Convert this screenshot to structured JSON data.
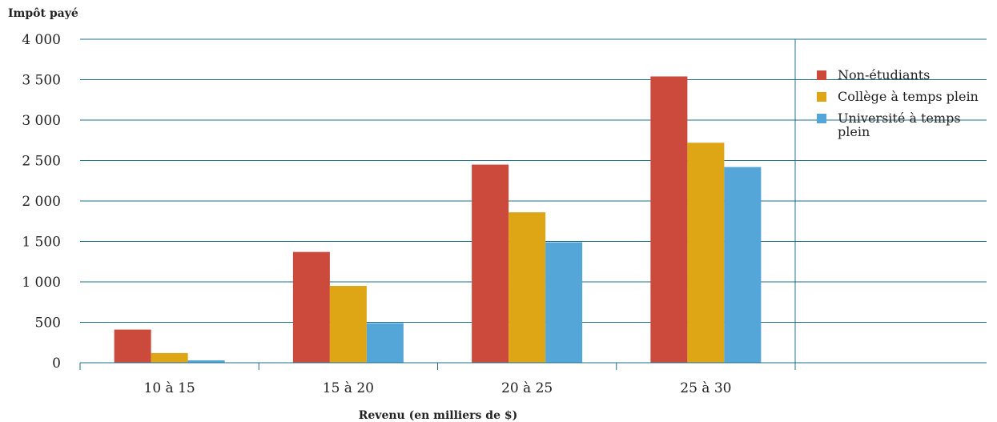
{
  "chart_data": {
    "type": "bar",
    "ylabel": "Impôt payé",
    "xlabel": "Revenu (en milliers de $)",
    "categories": [
      "10 à 15",
      "15 à 20",
      "20 à 25",
      "25 à 30"
    ],
    "series": [
      {
        "name": "Non-étudiants",
        "name_lines": [
          "Non-étudiants"
        ],
        "color": "#cc4a3c",
        "values": [
          410,
          1370,
          2450,
          3540
        ]
      },
      {
        "name": "Collège à temps plein",
        "name_lines": [
          "Collège à temps plein"
        ],
        "color": "#dea515",
        "values": [
          120,
          950,
          1860,
          2720
        ]
      },
      {
        "name": "Université à temps plein",
        "name_lines": [
          "Université à temps",
          "plein"
        ],
        "color": "#55a6d8",
        "values": [
          30,
          490,
          1490,
          2420
        ]
      }
    ],
    "ylim": [
      0,
      4000
    ],
    "yticks": [
      {
        "value": 0,
        "label": "0"
      },
      {
        "value": 500,
        "label": "500"
      },
      {
        "value": 1000,
        "label": "1 000"
      },
      {
        "value": 1500,
        "label": "1 500"
      },
      {
        "value": 2000,
        "label": "2 000"
      },
      {
        "value": 2500,
        "label": "2 500"
      },
      {
        "value": 3000,
        "label": "3 000"
      },
      {
        "value": 3500,
        "label": "3 500"
      },
      {
        "value": 4000,
        "label": "4 000"
      }
    ],
    "grid": true,
    "legend": "right",
    "grid_color": "#1f6f8b"
  }
}
